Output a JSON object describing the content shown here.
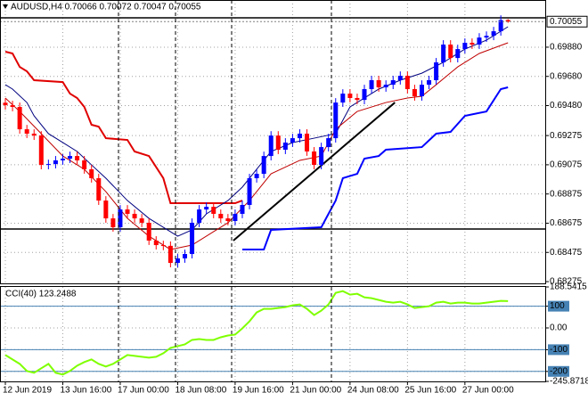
{
  "chart_data": [
    {
      "type": "candlestick",
      "header": "AUDUSD,H4  0.70066 0.70072 0.70047 0.70055",
      "categories": [
        "12 Jun 2019",
        null,
        null,
        null,
        null,
        null,
        null,
        null,
        "13 Jun 16:00",
        null,
        null,
        null,
        null,
        null,
        null,
        null,
        "17 Jun 00:00",
        null,
        null,
        null,
        null,
        null,
        null,
        null,
        "18 Jun 08:00",
        null,
        null,
        null,
        null,
        null,
        null,
        null,
        "19 Jun 16:00",
        null,
        null,
        null,
        null,
        null,
        null,
        null,
        "21 Jun 00:00",
        null,
        null,
        null,
        null,
        null,
        null,
        null,
        "24 Jun 08:00",
        null,
        null,
        null,
        null,
        null,
        null,
        null,
        "25 Jun 16:00",
        null,
        null,
        null,
        null,
        null,
        null,
        null,
        "27 Jun 00:00",
        null,
        null,
        null,
        null,
        null,
        null
      ],
      "ohlc": [
        [
          0.695,
          0.6953,
          0.69453,
          0.69483
        ],
        [
          0.69483,
          0.69513,
          0.69441,
          0.69471
        ],
        [
          0.69471,
          0.69501,
          0.69288,
          0.69318
        ],
        [
          0.69318,
          0.69348,
          0.69258,
          0.69288
        ],
        [
          0.69288,
          0.69318,
          0.69245,
          0.69275
        ],
        [
          0.69275,
          0.69305,
          0.69044,
          0.69074
        ],
        [
          0.69074,
          0.6911,
          0.69044,
          0.6908
        ],
        [
          0.6908,
          0.69135,
          0.6905,
          0.69105
        ],
        [
          0.69105,
          0.69147,
          0.69075,
          0.69117
        ],
        [
          0.69117,
          0.69165,
          0.69087,
          0.69135
        ],
        [
          0.69135,
          0.69165,
          0.69075,
          0.69105
        ],
        [
          0.69105,
          0.69135,
          0.69014,
          0.69044
        ],
        [
          0.69044,
          0.69074,
          0.68953,
          0.68983
        ],
        [
          0.68983,
          0.69013,
          0.688,
          0.6883
        ],
        [
          0.6883,
          0.6886,
          0.68678,
          0.68708
        ],
        [
          0.68708,
          0.68738,
          0.68617,
          0.68647
        ],
        [
          0.68647,
          0.68799,
          0.68617,
          0.68769
        ],
        [
          0.68769,
          0.68799,
          0.68709,
          0.68739
        ],
        [
          0.68739,
          0.68769,
          0.68678,
          0.68708
        ],
        [
          0.68708,
          0.68738,
          0.68648,
          0.68678
        ],
        [
          0.68678,
          0.68708,
          0.68526,
          0.68556
        ],
        [
          0.68556,
          0.68586,
          0.68495,
          0.68525
        ],
        [
          0.68525,
          0.68555,
          0.6849,
          0.6852
        ],
        [
          0.6852,
          0.6855,
          0.68373,
          0.68403
        ],
        [
          0.68403,
          0.68464,
          0.68373,
          0.68434
        ],
        [
          0.68434,
          0.68494,
          0.68404,
          0.68464
        ],
        [
          0.68464,
          0.68708,
          0.68434,
          0.68678
        ],
        [
          0.68678,
          0.68799,
          0.68648,
          0.68769
        ],
        [
          0.68769,
          0.68817,
          0.68739,
          0.68787
        ],
        [
          0.68787,
          0.68817,
          0.68709,
          0.68739
        ],
        [
          0.68739,
          0.68769,
          0.68678,
          0.68708
        ],
        [
          0.68708,
          0.68738,
          0.6866,
          0.6869
        ],
        [
          0.6869,
          0.68769,
          0.6866,
          0.68739
        ],
        [
          0.68739,
          0.6883,
          0.68709,
          0.688
        ],
        [
          0.688,
          0.69013,
          0.6877,
          0.68983
        ],
        [
          0.68983,
          0.69043,
          0.68953,
          0.69013
        ],
        [
          0.69013,
          0.69165,
          0.68983,
          0.69135
        ],
        [
          0.69135,
          0.69305,
          0.69105,
          0.69275
        ],
        [
          0.69275,
          0.69305,
          0.69148,
          0.69178
        ],
        [
          0.69178,
          0.69257,
          0.69148,
          0.69227
        ],
        [
          0.69227,
          0.69287,
          0.69197,
          0.69257
        ],
        [
          0.69257,
          0.69318,
          0.69227,
          0.69288
        ],
        [
          0.69288,
          0.69318,
          0.69136,
          0.69166
        ],
        [
          0.69166,
          0.69196,
          0.69044,
          0.69074
        ],
        [
          0.69074,
          0.69226,
          0.69044,
          0.69196
        ],
        [
          0.69196,
          0.69287,
          0.69166,
          0.69257
        ],
        [
          0.69257,
          0.69531,
          0.69227,
          0.69501
        ],
        [
          0.69501,
          0.69592,
          0.69471,
          0.69562
        ],
        [
          0.69562,
          0.69592,
          0.69502,
          0.69532
        ],
        [
          0.69532,
          0.69562,
          0.69489,
          0.69519
        ],
        [
          0.69519,
          0.69623,
          0.69489,
          0.69593
        ],
        [
          0.69593,
          0.69684,
          0.69563,
          0.69654
        ],
        [
          0.69654,
          0.69684,
          0.69575,
          0.69605
        ],
        [
          0.69605,
          0.69653,
          0.69575,
          0.69623
        ],
        [
          0.69623,
          0.69684,
          0.69593,
          0.69654
        ],
        [
          0.69654,
          0.69714,
          0.69624,
          0.69684
        ],
        [
          0.69684,
          0.69714,
          0.69563,
          0.69593
        ],
        [
          0.69593,
          0.69623,
          0.69514,
          0.69544
        ],
        [
          0.69544,
          0.69653,
          0.69514,
          0.69623
        ],
        [
          0.69623,
          0.69684,
          0.69593,
          0.69654
        ],
        [
          0.69654,
          0.69806,
          0.69624,
          0.69776
        ],
        [
          0.69776,
          0.69928,
          0.69746,
          0.69898
        ],
        [
          0.69898,
          0.69928,
          0.69776,
          0.69806
        ],
        [
          0.69806,
          0.69897,
          0.69776,
          0.69867
        ],
        [
          0.69867,
          0.6994,
          0.69837,
          0.6991
        ],
        [
          0.6991,
          0.6994,
          0.69868,
          0.69898
        ],
        [
          0.69898,
          0.69976,
          0.69868,
          0.69946
        ],
        [
          0.69946,
          0.69988,
          0.69916,
          0.69958
        ],
        [
          0.69958,
          0.70019,
          0.69928,
          0.69989
        ],
        [
          0.69989,
          0.70098,
          0.69959,
          0.70066
        ],
        [
          0.70066,
          0.70072,
          0.70047,
          0.70055
        ]
      ],
      "up_color": "#0000ff",
      "down_color": "#ff0000",
      "lines": [
        {
          "color": "#e00000",
          "width": 2,
          "x": [
            0,
            1,
            2,
            3,
            4,
            8,
            9,
            10,
            11,
            12,
            13,
            14,
            17,
            18,
            20,
            22,
            23,
            32,
            33
          ],
          "values": [
            0.69849,
            0.69837,
            0.69745,
            0.69715,
            0.69654,
            0.69641,
            0.69562,
            0.69532,
            0.69471,
            0.69349,
            0.69336,
            0.69257,
            0.69245,
            0.69166,
            0.69135,
            0.68983,
            0.68812,
            0.68812,
            0.6883
          ]
        },
        {
          "color": "#0000ff",
          "width": 2,
          "x": [
            33,
            36,
            37,
            44,
            45,
            46,
            47,
            49,
            50,
            52,
            53,
            58,
            60,
            62,
            64,
            67,
            69,
            70
          ],
          "values": [
            0.68495,
            0.68495,
            0.68629,
            0.68647,
            0.68739,
            0.6883,
            0.68983,
            0.69013,
            0.69117,
            0.69135,
            0.69178,
            0.69196,
            0.69288,
            0.693,
            0.6941,
            0.6944,
            0.69593,
            0.69605
          ]
        },
        {
          "color": "#000080",
          "width": 1,
          "x": [
            0,
            1,
            3,
            4,
            6,
            8,
            10,
            12,
            14,
            17,
            20,
            24,
            26,
            28,
            31,
            33,
            35,
            37,
            40,
            43,
            46,
            48,
            52,
            55,
            58,
            61,
            64,
            67,
            70
          ],
          "values": [
            0.69623,
            0.69593,
            0.69501,
            0.6941,
            0.69288,
            0.69227,
            0.69166,
            0.69074,
            0.68983,
            0.6883,
            0.68708,
            0.68586,
            0.68629,
            0.68739,
            0.6883,
            0.68922,
            0.69044,
            0.69166,
            0.69227,
            0.69257,
            0.69288,
            0.69471,
            0.69593,
            0.69654,
            0.69702,
            0.69776,
            0.69867,
            0.69928,
            0.7002
          ]
        },
        {
          "color": "#c00000",
          "width": 1,
          "x": [
            0,
            2,
            5,
            8,
            11,
            14,
            17,
            20,
            23,
            26,
            29,
            31,
            34,
            37,
            41,
            44,
            46,
            49,
            53,
            56,
            58,
            60,
            63,
            66,
            70
          ],
          "values": [
            0.69532,
            0.6944,
            0.69288,
            0.69135,
            0.69044,
            0.68891,
            0.68708,
            0.68586,
            0.68495,
            0.68525,
            0.68617,
            0.68678,
            0.6883,
            0.69013,
            0.69105,
            0.69135,
            0.69318,
            0.6944,
            0.69501,
            0.69532,
            0.69544,
            0.69623,
            0.69745,
            0.69837,
            0.6991
          ]
        }
      ],
      "trendline": {
        "color": "#000000",
        "x": [
          31.75,
          54.25
        ],
        "values": [
          0.68556,
          0.69501
        ]
      },
      "hlines": [
        0.68635,
        0.70081
      ],
      "current_price": {
        "value": 0.70055,
        "label": "0.70055"
      },
      "ylim": [
        0.68263,
        0.70203
      ],
      "yticks": [
        {
          "value": 0.6988,
          "label": "0.69880"
        },
        {
          "value": 0.6968,
          "label": "0.69680"
        },
        {
          "value": 0.6948,
          "label": "0.69480"
        },
        {
          "value": 0.69275,
          "label": "0.69275"
        },
        {
          "value": 0.69075,
          "label": "0.69075"
        },
        {
          "value": 0.68875,
          "label": "0.68875"
        },
        {
          "value": 0.68675,
          "label": "0.68675"
        },
        {
          "value": 0.68475,
          "label": "0.68475"
        },
        {
          "value": 0.68275,
          "label": "0.68275"
        }
      ],
      "grid": true
    },
    {
      "type": "line",
      "title": "CCI(40) 123.2488",
      "color": "#7fff00",
      "values": [
        -124.5,
        -144.9,
        -165.3,
        -198.0,
        -206.1,
        -185.7,
        -165.3,
        -206.1,
        -214.3,
        -198.0,
        -173.5,
        -157.1,
        -144.9,
        -165.3,
        -177.6,
        -165.3,
        -144.9,
        -124.5,
        -128.6,
        -132.7,
        -136.7,
        -132.7,
        -116.3,
        -91.8,
        -83.7,
        -75.5,
        -55.1,
        -51.0,
        -55.1,
        -55.1,
        -42.9,
        -34.7,
        -30.6,
        -2.0,
        30.6,
        71.4,
        87.8,
        87.8,
        91.8,
        95.9,
        104.1,
        108.2,
        87.8,
        59.2,
        79.6,
        108.2,
        161.2,
        169.4,
        153.1,
        157.1,
        140.8,
        136.7,
        128.6,
        120.4,
        116.3,
        120.4,
        108.2,
        91.8,
        95.9,
        100.0,
        116.3,
        120.4,
        112.2,
        116.3,
        116.3,
        112.2,
        112.2,
        116.3,
        120.4,
        124.5,
        123.2488
      ],
      "levels": [
        100,
        -100,
        -200
      ],
      "level_color": "#4682b4",
      "ylim": [
        -245.8718,
        188.5415
      ],
      "yticks": [
        188.5415,
        100,
        {
          "value": 0,
          "label": "0.00"
        },
        -100,
        -200,
        -245.8718
      ],
      "grid": true
    }
  ]
}
